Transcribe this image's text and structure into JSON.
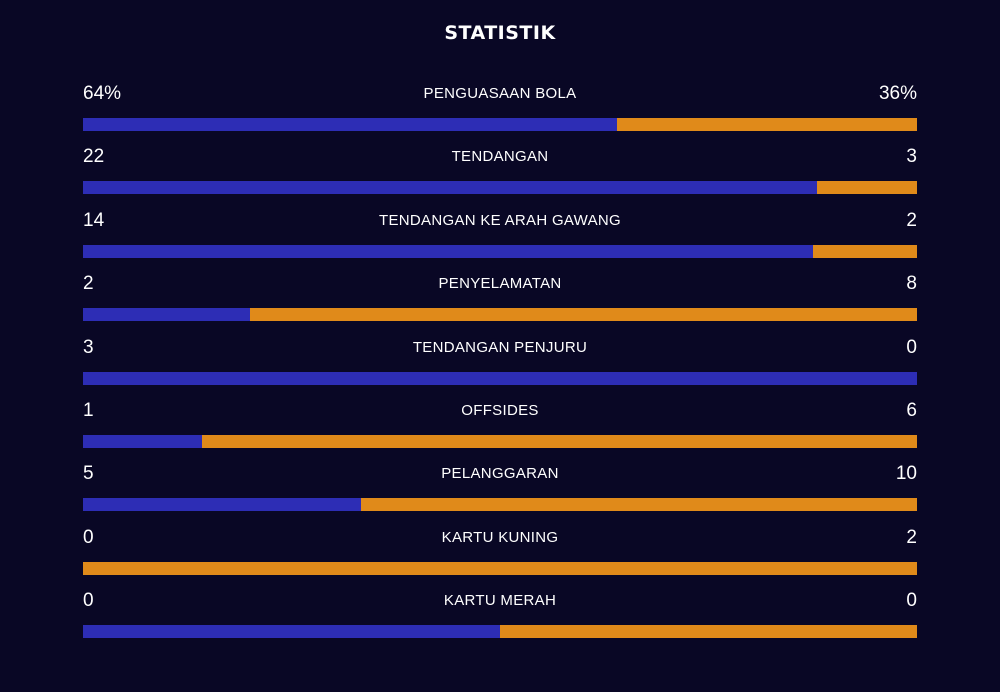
{
  "header": {
    "title": "STATISTIK"
  },
  "colors": {
    "background": "#090725",
    "home": "#2d2db5",
    "away": "#e08a1a"
  },
  "stats": [
    {
      "label": "PENGUASAAN BOLA",
      "home": "64%",
      "away": "36%",
      "home_value": 64,
      "away_value": 36
    },
    {
      "label": "TENDANGAN",
      "home": "22",
      "away": "3",
      "home_value": 22,
      "away_value": 3
    },
    {
      "label": "TENDANGAN KE ARAH GAWANG",
      "home": "14",
      "away": "2",
      "home_value": 14,
      "away_value": 2
    },
    {
      "label": "PENYELAMATAN",
      "home": "2",
      "away": "8",
      "home_value": 2,
      "away_value": 8
    },
    {
      "label": "TENDANGAN PENJURU",
      "home": "3",
      "away": "0",
      "home_value": 3,
      "away_value": 0
    },
    {
      "label": "OFFSIDES",
      "home": "1",
      "away": "6",
      "home_value": 1,
      "away_value": 6
    },
    {
      "label": "PELANGGARAN",
      "home": "5",
      "away": "10",
      "home_value": 5,
      "away_value": 10
    },
    {
      "label": "KARTU KUNING",
      "home": "0",
      "away": "2",
      "home_value": 0,
      "away_value": 2
    },
    {
      "label": "KARTU MERAH",
      "home": "0",
      "away": "0",
      "home_value": 0,
      "away_value": 0
    }
  ]
}
